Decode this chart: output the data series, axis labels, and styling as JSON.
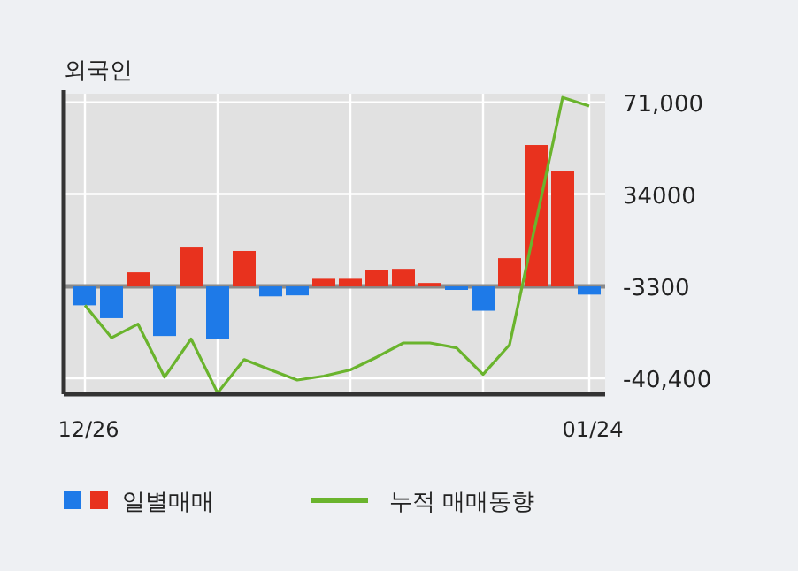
{
  "chart_data": {
    "type": "bar",
    "title": "외국인",
    "categories": [
      "12/26",
      null,
      null,
      null,
      null,
      null,
      null,
      null,
      null,
      null,
      null,
      null,
      null,
      null,
      null,
      null,
      null,
      null,
      null,
      "01/24"
    ],
    "ylim": [
      -46800,
      74500
    ],
    "yticks": [
      {
        "value": 71000,
        "label": "71,000"
      },
      34000,
      -3300,
      {
        "value": -40400,
        "label": "-40,400"
      }
    ],
    "grid": true,
    "legend": "bottom",
    "ref_lines": [
      {
        "axis": "y",
        "value": -3300,
        "color": "#8a8a8a"
      }
    ],
    "series": [
      {
        "name": "일별매매",
        "base": [
          -3300,
          -3300,
          -3300,
          -3300,
          -3300,
          -3300,
          -3300,
          -3300,
          -3300,
          -3300,
          -3300,
          -3300,
          -3300,
          -3300,
          -3300,
          -3300,
          -3300,
          -3300,
          -3300,
          -3300
        ],
        "colors": [
          "#1e7ae8",
          "#1e7ae8",
          "#e8321e",
          "#1e7ae8",
          "#e8321e",
          "#1e7ae8",
          "#e8321e",
          "#1e7ae8",
          "#1e7ae8",
          "#e8321e",
          "#e8321e",
          "#e8321e",
          "#e8321e",
          "#e8321e",
          "#1e7ae8",
          "#1e7ae8",
          "#e8321e",
          "#e8321e",
          "#e8321e",
          "#1e7ae8"
        ],
        "values": [
          -7600,
          -12800,
          5700,
          -20000,
          15700,
          -21200,
          14300,
          -4000,
          -3600,
          3100,
          3100,
          6600,
          7100,
          1400,
          -1400,
          -9800,
          11400,
          57100,
          46400,
          -3300
        ]
      },
      {
        "name": "누적 매매동향",
        "type": "line",
        "color": "#6ab42d",
        "values": [
          -10900,
          -24000,
          -18500,
          -39900,
          -24500,
          -46300,
          -32800,
          -37000,
          -41100,
          -39500,
          -37000,
          -31800,
          -26100,
          -26100,
          -28100,
          -38800,
          -26800,
          23100,
          73000,
          69500
        ]
      }
    ]
  }
}
